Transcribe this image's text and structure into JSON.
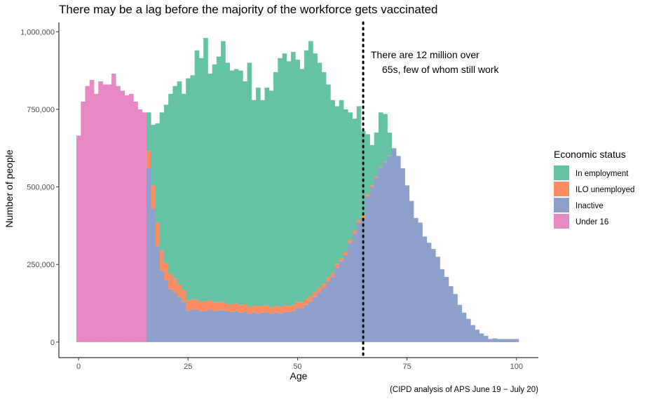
{
  "chart_data": {
    "type": "bar",
    "stacked": true,
    "title": "There may be a lag before the majority of the workforce gets vaccinated",
    "xlabel": "Age",
    "ylabel": "Number of people",
    "caption": "(CIPD analysis of APS June 19 − July 20)",
    "xlim": [
      -4.5,
      105
    ],
    "ylim": [
      -50000,
      1030000
    ],
    "x_ticks": [
      0,
      25,
      50,
      75,
      100
    ],
    "x_tick_labels": [
      "0",
      "25",
      "50",
      "75",
      "100"
    ],
    "y_ticks": [
      0,
      250000,
      500000,
      750000,
      1000000
    ],
    "y_tick_labels": [
      "0",
      "250,000",
      "500,000",
      "750,000",
      "1,000,000"
    ],
    "grid": false,
    "legend": {
      "title": "Economic status",
      "position": "right",
      "entries": [
        {
          "label": "In employment",
          "color": "#66c2a5"
        },
        {
          "label": "ILO unemployed",
          "color": "#fc8d62"
        },
        {
          "label": "Inactive",
          "color": "#8da0cb"
        },
        {
          "label": "Under 16",
          "color": "#e78ac3"
        }
      ]
    },
    "reference_line": {
      "x": 65,
      "style": "dotted"
    },
    "annotation": {
      "lines": [
        "There are 12 million over",
        "65s, few of whom still work"
      ],
      "x": 65
    }
  }
}
